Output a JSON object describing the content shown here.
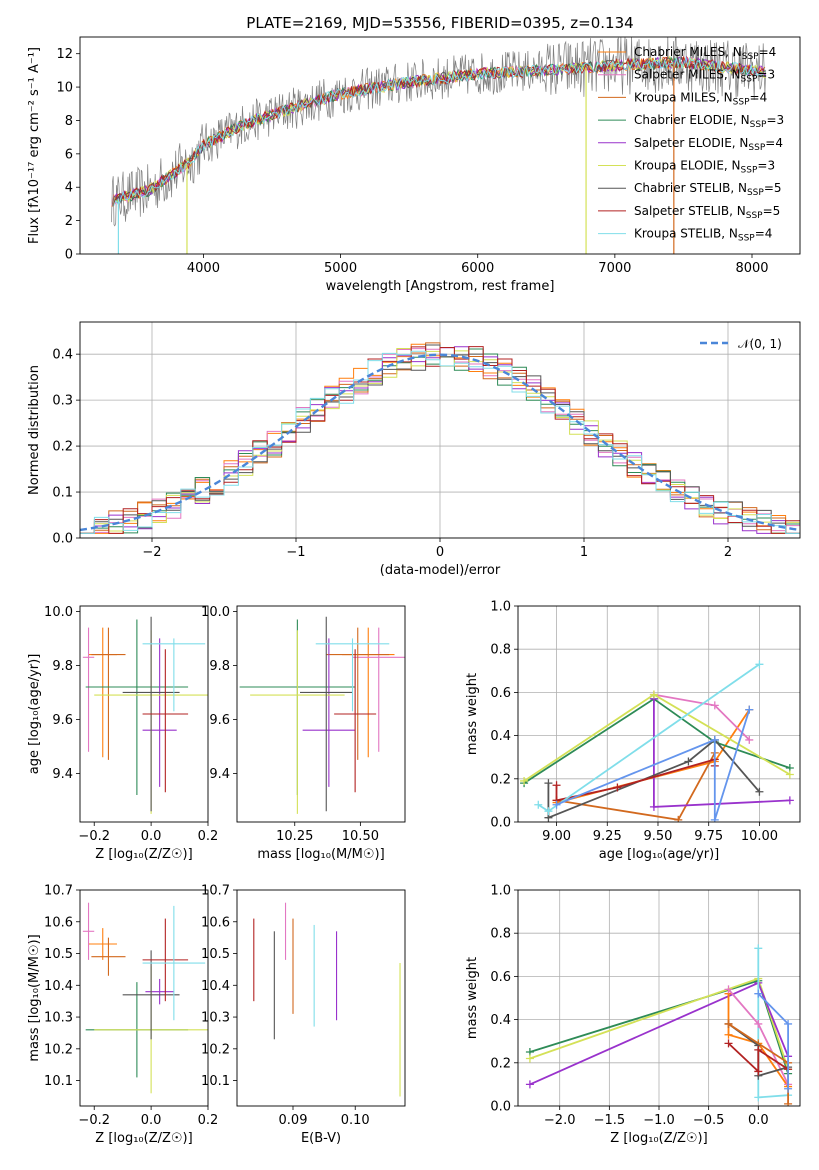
{
  "title": "PLATE=2169, MJD=53556, FIBERID=0395, z=0.134",
  "colors": [
    "#ff7f0e",
    "#e377c2",
    "#d2691e",
    "#2e8b57",
    "#9932cc",
    "#d4e157",
    "#555555",
    "#b22222",
    "#80deea"
  ],
  "chart_data": [
    {
      "id": "spectrum",
      "type": "line",
      "xlabel": "wavelength [Angstrom, rest frame]",
      "ylabel": "Flux [fλ10⁻¹⁷ erg cm⁻² s⁻¹ A⁻¹]",
      "xlim": [
        3100,
        8350
      ],
      "ylim": [
        0,
        13
      ],
      "xticks": [
        4000,
        5000,
        6000,
        7000,
        8000
      ],
      "yticks": [
        0,
        2,
        4,
        6,
        8,
        10,
        12
      ],
      "legend_position": "top-right",
      "series": [
        {
          "name": "Chabrier MILES, NSSP=4",
          "color": "#ff7f0e"
        },
        {
          "name": "Salpeter MILES, NSSP=3",
          "color": "#e377c2"
        },
        {
          "name": "Kroupa MILES, NSSP=4",
          "color": "#d2691e"
        },
        {
          "name": "Chabrier ELODIE, NSSP=3",
          "color": "#2e8b57"
        },
        {
          "name": "Salpeter ELODIE, NSSP=4",
          "color": "#9932cc"
        },
        {
          "name": "Kroupa ELODIE, NSSP=3",
          "color": "#d4e157"
        },
        {
          "name": "Chabrier STELIB, NSSP=5",
          "color": "#555555"
        },
        {
          "name": "Salpeter STELIB, NSSP=5",
          "color": "#b22222"
        },
        {
          "name": "Kroupa STELIB, NSSP=4",
          "color": "#80deea"
        }
      ],
      "continuum": {
        "x": [
          3330,
          3600,
          3900,
          4000,
          4300,
          4600,
          5000,
          5500,
          6000,
          6500,
          7000,
          7500,
          8000,
          8100
        ],
        "y": [
          3.2,
          3.8,
          5.5,
          6.5,
          7.8,
          8.6,
          9.6,
          10.3,
          10.8,
          11.0,
          11.3,
          11.5,
          11.0,
          10.9
        ]
      }
    },
    {
      "id": "residuals",
      "type": "step",
      "xlabel": "(data-model)/error",
      "ylabel": "Normed distribution",
      "xlim": [
        -2.5,
        2.5
      ],
      "ylim": [
        0,
        0.47
      ],
      "xticks": [
        -2,
        -1,
        0,
        1,
        2
      ],
      "yticks": [
        0.0,
        0.1,
        0.2,
        0.3,
        0.4
      ],
      "legend": "𝒩(0, 1)",
      "legend_position": "top-right",
      "bin_width": 0.1
    },
    {
      "id": "age-vs-Z",
      "type": "errorbar",
      "xlabel": "Z [log₁₀(Z/Z☉)]",
      "ylabel": "age  [log₁₀(age/yr)]",
      "xlim": [
        -0.25,
        0.2
      ],
      "ylim": [
        9.22,
        10.02
      ],
      "xticks": [
        -0.2,
        0.0,
        0.2
      ],
      "yticks": [
        9.4,
        9.6,
        9.8,
        10.0
      ],
      "points": [
        {
          "x": -0.17,
          "y": 9.84,
          "xerr": 0.05,
          "yerr_lo": 0.38,
          "yerr_hi": 0.1,
          "color": "#ff7f0e"
        },
        {
          "x": -0.22,
          "y": 9.83,
          "xerr": 0.02,
          "yerr_lo": 0.35,
          "yerr_hi": 0.11,
          "color": "#e377c2"
        },
        {
          "x": -0.15,
          "y": 9.84,
          "xerr": 0.06,
          "yerr_lo": 0.39,
          "yerr_hi": 0.1,
          "color": "#d2691e"
        },
        {
          "x": -0.05,
          "y": 9.72,
          "xerr": 0.18,
          "yerr_lo": 0.4,
          "yerr_hi": 0.25,
          "color": "#2e8b57"
        },
        {
          "x": 0.03,
          "y": 9.56,
          "xerr": 0.06,
          "yerr_lo": 0.21,
          "yerr_hi": 0.34,
          "color": "#9932cc"
        },
        {
          "x": 0.0,
          "y": 9.69,
          "xerr": 0.2,
          "yerr_lo": 0.44,
          "yerr_hi": 0.24,
          "color": "#d4e157"
        },
        {
          "x": 0.0,
          "y": 9.7,
          "xerr": 0.1,
          "yerr_lo": 0.44,
          "yerr_hi": 0.28,
          "color": "#555555"
        },
        {
          "x": 0.05,
          "y": 9.62,
          "xerr": 0.08,
          "yerr_lo": 0.29,
          "yerr_hi": 0.24,
          "color": "#b22222"
        },
        {
          "x": 0.08,
          "y": 9.88,
          "xerr": 0.11,
          "yerr_lo": 0.25,
          "yerr_hi": 0.02,
          "color": "#80deea"
        }
      ]
    },
    {
      "id": "age-vs-mass",
      "type": "errorbar",
      "xlabel": "mass [log₁₀(M/M☉)]",
      "ylabel": "",
      "xlim": [
        10.03,
        10.67
      ],
      "ylim": [
        9.22,
        10.02
      ],
      "xticks": [
        10.25,
        10.5
      ],
      "yticks": [
        9.4,
        9.6,
        9.8,
        10.0
      ],
      "points": [
        {
          "x": 10.53,
          "y": 9.84,
          "xerr": 0.1,
          "yerr_lo": 0.38,
          "yerr_hi": 0.1,
          "color": "#ff7f0e"
        },
        {
          "x": 10.57,
          "y": 9.83,
          "xerr": 0.1,
          "yerr_lo": 0.35,
          "yerr_hi": 0.11,
          "color": "#e377c2"
        },
        {
          "x": 10.49,
          "y": 9.84,
          "xerr": 0.12,
          "yerr_lo": 0.39,
          "yerr_hi": 0.1,
          "color": "#d2691e"
        },
        {
          "x": 10.26,
          "y": 9.72,
          "xerr": 0.22,
          "yerr_lo": 0.4,
          "yerr_hi": 0.25,
          "color": "#2e8b57"
        },
        {
          "x": 10.38,
          "y": 9.56,
          "xerr": 0.1,
          "yerr_lo": 0.21,
          "yerr_hi": 0.34,
          "color": "#9932cc"
        },
        {
          "x": 10.26,
          "y": 9.69,
          "xerr": 0.18,
          "yerr_lo": 0.44,
          "yerr_hi": 0.24,
          "color": "#d4e157"
        },
        {
          "x": 10.37,
          "y": 9.7,
          "xerr": 0.1,
          "yerr_lo": 0.44,
          "yerr_hi": 0.28,
          "color": "#555555"
        },
        {
          "x": 10.48,
          "y": 9.62,
          "xerr": 0.08,
          "yerr_lo": 0.29,
          "yerr_hi": 0.24,
          "color": "#b22222"
        },
        {
          "x": 10.47,
          "y": 9.88,
          "xerr": 0.14,
          "yerr_lo": 0.25,
          "yerr_hi": 0.02,
          "color": "#80deea"
        }
      ]
    },
    {
      "id": "mass-weight-vs-age",
      "type": "line",
      "xlabel": "age  [log₁₀(age/yr)]",
      "ylabel": "mass weight",
      "xlim": [
        8.81,
        10.2
      ],
      "ylim": [
        0,
        1.0
      ],
      "xticks": [
        9.0,
        9.25,
        9.5,
        9.75,
        10.0
      ],
      "yticks": [
        0.0,
        0.2,
        0.4,
        0.6,
        0.8,
        1.0
      ],
      "series": [
        {
          "color": "#ff7f0e",
          "x": [
            9.0,
            9.78,
            9.95
          ],
          "y": [
            0.09,
            0.28,
            0.52
          ]
        },
        {
          "color": "#e377c2",
          "x": [
            9.48,
            9.78,
            9.95
          ],
          "y": [
            0.59,
            0.54,
            0.38
          ]
        },
        {
          "color": "#d2691e",
          "x": [
            9.0,
            9.6,
            9.78
          ],
          "y": [
            0.1,
            0.01,
            0.32
          ]
        },
        {
          "color": "#2e8b57",
          "x": [
            8.84,
            9.48,
            9.78,
            10.15
          ],
          "y": [
            0.18,
            0.57,
            0.37,
            0.25
          ]
        },
        {
          "color": "#9932cc",
          "x": [
            9.48,
            9.48,
            10.15
          ],
          "y": [
            0.57,
            0.07,
            0.1
          ]
        },
        {
          "color": "#d4e157",
          "x": [
            8.84,
            9.48,
            10.15
          ],
          "y": [
            0.19,
            0.59,
            0.22
          ]
        },
        {
          "color": "#555555",
          "x": [
            8.96,
            8.96,
            9.65,
            9.78,
            10.0
          ],
          "y": [
            0.18,
            0.02,
            0.28,
            0.38,
            0.14
          ]
        },
        {
          "color": "#b22222",
          "x": [
            9.0,
            9.0,
            9.3,
            9.78,
            9.78
          ],
          "y": [
            0.17,
            0.1,
            0.16,
            0.29,
            0.26
          ]
        },
        {
          "color": "#80deea",
          "x": [
            8.91,
            8.96,
            10.0
          ],
          "y": [
            0.08,
            0.05,
            0.73
          ]
        },
        {
          "color": "#6495ed",
          "x": [
            9.0,
            9.78,
            9.78,
            9.95
          ],
          "y": [
            0.08,
            0.38,
            0.01,
            0.52
          ]
        }
      ]
    },
    {
      "id": "mass-vs-Z",
      "type": "errorbar",
      "xlabel": "Z [log₁₀(Z/Z☉)]",
      "ylabel": "mass [log₁₀(M/M☉)]",
      "xlim": [
        -0.25,
        0.2
      ],
      "ylim": [
        10.02,
        10.7
      ],
      "xticks": [
        -0.2,
        0.0,
        0.2
      ],
      "yticks": [
        10.1,
        10.2,
        10.3,
        10.4,
        10.5,
        10.6,
        10.7
      ],
      "points": [
        {
          "x": -0.17,
          "y": 10.53,
          "xerr": 0.05,
          "yerr": 0.05,
          "color": "#ff7f0e"
        },
        {
          "x": -0.22,
          "y": 10.57,
          "xerr": 0.02,
          "yerr": 0.09,
          "color": "#e377c2"
        },
        {
          "x": -0.15,
          "y": 10.49,
          "xerr": 0.06,
          "yerr": 0.06,
          "color": "#d2691e"
        },
        {
          "x": -0.05,
          "y": 10.26,
          "xerr": 0.18,
          "yerr": 0.15,
          "color": "#2e8b57"
        },
        {
          "x": 0.03,
          "y": 10.38,
          "xerr": 0.05,
          "yerr": 0.04,
          "color": "#9932cc"
        },
        {
          "x": 0.0,
          "y": 10.26,
          "xerr": 0.2,
          "yerr": 0.2,
          "color": "#d4e157"
        },
        {
          "x": 0.0,
          "y": 10.37,
          "xerr": 0.1,
          "yerr": 0.14,
          "color": "#555555"
        },
        {
          "x": 0.05,
          "y": 10.48,
          "xerr": 0.08,
          "yerr": 0.13,
          "color": "#b22222"
        },
        {
          "x": 0.08,
          "y": 10.47,
          "xerr": 0.11,
          "yerr": 0.18,
          "color": "#80deea"
        }
      ]
    },
    {
      "id": "mass-vs-EBV",
      "type": "errorbar",
      "xlabel": "E(B-V)",
      "ylabel": "",
      "xlim": [
        0.081,
        0.108
      ],
      "ylim": [
        10.02,
        10.7
      ],
      "xticks": [
        0.09,
        0.1
      ],
      "yticks": [
        10.1,
        10.2,
        10.3,
        10.4,
        10.5,
        10.6,
        10.7
      ],
      "points": [
        {
          "x": 0.0837,
          "y": 10.48,
          "yerr": 0.13,
          "color": "#b22222"
        },
        {
          "x": 0.087,
          "y": 10.4,
          "yerr": 0.17,
          "color": "#555555"
        },
        {
          "x": 0.0888,
          "y": 10.57,
          "yerr": 0.09,
          "color": "#e377c2"
        },
        {
          "x": 0.09,
          "y": 10.46,
          "yerr": 0.15,
          "color": "#d2691e"
        },
        {
          "x": 0.0934,
          "y": 10.43,
          "yerr": 0.16,
          "color": "#80deea"
        },
        {
          "x": 0.097,
          "y": 10.43,
          "yerr": 0.14,
          "color": "#9932cc"
        },
        {
          "x": 0.1072,
          "y": 10.26,
          "yerr": 0.21,
          "color": "#d4e157"
        }
      ]
    },
    {
      "id": "mass-weight-vs-Z",
      "type": "line",
      "xlabel": "Z [log₁₀(Z/Z☉)]",
      "ylabel": "mass weight",
      "xlim": [
        -2.42,
        0.42
      ],
      "ylim": [
        0,
        1.0
      ],
      "xticks": [
        -2.0,
        -1.5,
        -1.0,
        -0.5,
        0.0
      ],
      "yticks": [
        0.0,
        0.2,
        0.4,
        0.6,
        0.8,
        1.0
      ],
      "series": [
        {
          "color": "#2e8b57",
          "x": [
            -2.3,
            0.0,
            0.3
          ],
          "y": [
            0.25,
            0.58,
            0.15
          ]
        },
        {
          "color": "#d4e157",
          "x": [
            -2.3,
            0.0,
            0.3
          ],
          "y": [
            0.22,
            0.59,
            0.17
          ]
        },
        {
          "color": "#9932cc",
          "x": [
            -2.3,
            0.0,
            0.3
          ],
          "y": [
            0.1,
            0.57,
            0.23
          ]
        },
        {
          "color": "#80deea",
          "x": [
            0.0,
            0.0,
            0.3
          ],
          "y": [
            0.73,
            0.04,
            0.05
          ]
        },
        {
          "color": "#ff7f0e",
          "x": [
            -0.3,
            -0.3,
            0.0,
            0.3
          ],
          "y": [
            0.52,
            0.33,
            0.29,
            0.09
          ]
        },
        {
          "color": "#e377c2",
          "x": [
            -0.3,
            0.0,
            0.3
          ],
          "y": [
            0.54,
            0.38,
            0.1
          ]
        },
        {
          "color": "#555555",
          "x": [
            -0.3,
            0.0,
            0.0,
            0.3
          ],
          "y": [
            0.38,
            0.28,
            0.14,
            0.18
          ]
        },
        {
          "color": "#b22222",
          "x": [
            -0.3,
            0.0,
            0.0,
            0.3
          ],
          "y": [
            0.29,
            0.16,
            0.26,
            0.17
          ]
        },
        {
          "color": "#d2691e",
          "x": [
            -0.3,
            0.3,
            0.3
          ],
          "y": [
            0.38,
            0.2,
            0.01
          ]
        },
        {
          "color": "#6495ed",
          "x": [
            0.0,
            0.3,
            0.3
          ],
          "y": [
            0.52,
            0.38,
            0.08
          ]
        }
      ]
    }
  ]
}
